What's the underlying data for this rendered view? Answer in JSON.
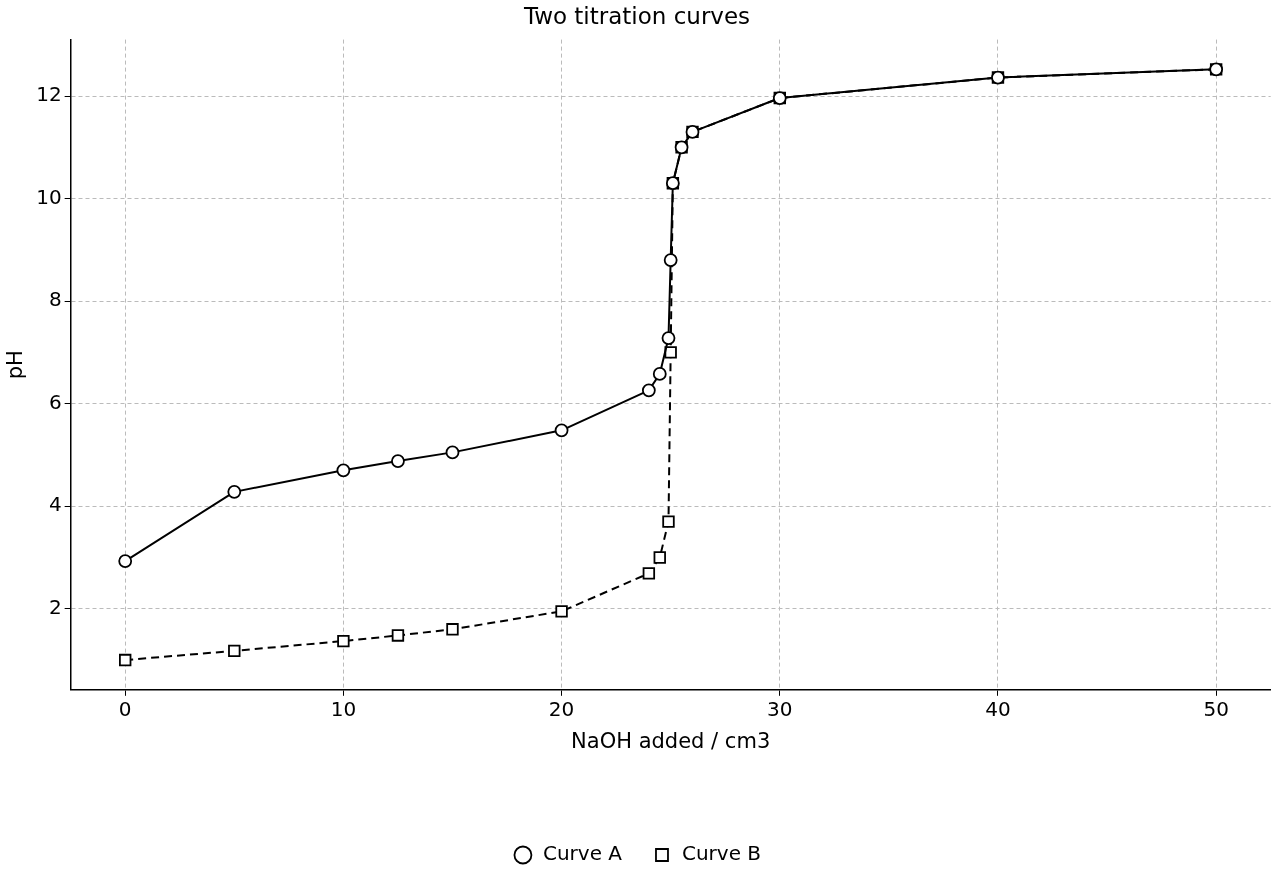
{
  "chart_data": {
    "type": "line",
    "title": "Two titration curves",
    "xlabel": "NaOH added / cm3",
    "ylabel": "pH",
    "xlim": [
      -2.5,
      52.5
    ],
    "xticks": [
      0,
      10,
      20,
      30,
      40,
      50
    ],
    "ylim": [
      0.42,
      13.1
    ],
    "yticks": [
      2,
      4,
      6,
      8,
      10,
      12
    ],
    "grid": true,
    "legend": "bottom",
    "series": [
      {
        "name": "Curve A",
        "color": "#000000",
        "marker": "circle",
        "line_style": "solid",
        "x": [
          0,
          5,
          10,
          12.5,
          15,
          20,
          24,
          24.5,
          24.9,
          25,
          25.1,
          25.5,
          26,
          30,
          40,
          50
        ],
        "values": [
          2.93,
          4.28,
          4.7,
          4.88,
          5.05,
          5.48,
          6.26,
          6.58,
          7.28,
          8.8,
          10.3,
          11.0,
          11.3,
          11.96,
          12.36,
          12.52
        ]
      },
      {
        "name": "Curve B",
        "color": "#000000",
        "marker": "square",
        "line_style": "dashed",
        "x": [
          0,
          5,
          10,
          12.5,
          15,
          20,
          24,
          24.5,
          24.9,
          25,
          25.1,
          25.5,
          26,
          30,
          40,
          50
        ],
        "values": [
          1.0,
          1.18,
          1.37,
          1.48,
          1.6,
          1.95,
          2.69,
          3.0,
          3.7,
          7.0,
          10.3,
          11.0,
          11.3,
          11.96,
          12.36,
          12.52
        ]
      }
    ]
  }
}
